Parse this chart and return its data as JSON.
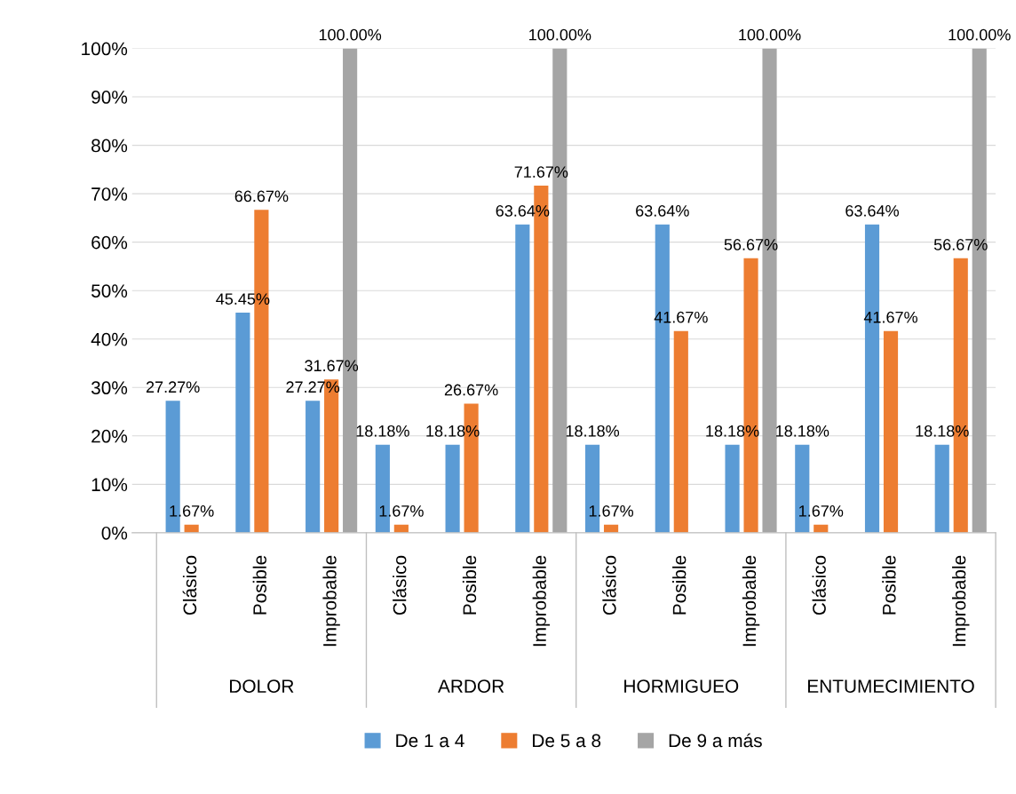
{
  "chart_data": {
    "type": "bar",
    "categories": [
      "Clásico",
      "Posible",
      "Improbable",
      "Clásico",
      "Posible",
      "Improbable",
      "Clásico",
      "Posible",
      "Improbable",
      "Clásico",
      "Posible",
      "Improbable"
    ],
    "annotations": [
      "DOLOR",
      "ARDOR",
      "HORMIGUEO",
      "ENTUMECIMIENTO"
    ],
    "series": [
      {
        "name": "De 1 a 4",
        "color": "#5b9bd5",
        "values": [
          27.27,
          45.45,
          27.27,
          18.18,
          18.18,
          63.64,
          18.18,
          63.64,
          18.18,
          18.18,
          63.64,
          18.18
        ],
        "value_labels": [
          "27.27%",
          "45.45%",
          "27.27%",
          "18.18%",
          "18.18%",
          "63.64%",
          "18.18%",
          "63.64%",
          "18.18%",
          "18.18%",
          "63.64%",
          "18.18%"
        ]
      },
      {
        "name": "De 5 a 8",
        "color": "#ed7d31",
        "values": [
          1.67,
          66.67,
          31.67,
          1.67,
          26.67,
          71.67,
          1.67,
          41.67,
          56.67,
          1.67,
          41.67,
          56.67
        ],
        "value_labels": [
          "1.67%",
          "66.67%",
          "31.67%",
          "1.67%",
          "26.67%",
          "71.67%",
          "1.67%",
          "41.67%",
          "56.67%",
          "1.67%",
          "41.67%",
          "56.67%"
        ]
      },
      {
        "name": "De 9 a más",
        "color": "#a5a5a5",
        "values": [
          null,
          null,
          100,
          null,
          null,
          100,
          null,
          null,
          100,
          null,
          null,
          100
        ],
        "value_labels": [
          null,
          null,
          "100.00%",
          null,
          null,
          "100.00%",
          null,
          null,
          "100.00%",
          null,
          null,
          "100.00%"
        ]
      }
    ],
    "ylim": [
      0,
      100
    ],
    "yticks": [
      {
        "value": 0,
        "label": "0%"
      },
      {
        "value": 10,
        "label": "10%"
      },
      {
        "value": 20,
        "label": "20%"
      },
      {
        "value": 30,
        "label": "30%"
      },
      {
        "value": 40,
        "label": "40%"
      },
      {
        "value": 50,
        "label": "50%"
      },
      {
        "value": 60,
        "label": "60%"
      },
      {
        "value": 70,
        "label": "70%"
      },
      {
        "value": 80,
        "label": "80%"
      },
      {
        "value": 90,
        "label": "90%"
      },
      {
        "value": 100,
        "label": "100%"
      }
    ],
    "grid": "y",
    "legend": "bottom"
  }
}
